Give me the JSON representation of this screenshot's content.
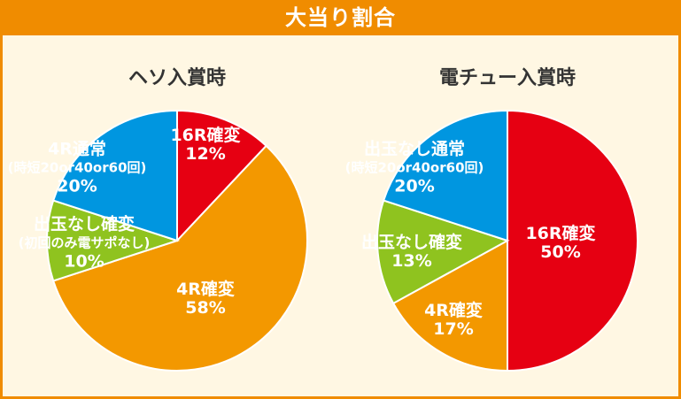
{
  "header": {
    "title": "大当り割合"
  },
  "chart_data": [
    {
      "type": "pie",
      "title": "ヘソ入賞時",
      "slices": [
        {
          "lines": [
            "16R確変"
          ],
          "percent": 12,
          "pct_label": "12%",
          "color": "#e60012"
        },
        {
          "lines": [
            "4R確変"
          ],
          "percent": 58,
          "pct_label": "58%",
          "color": "#f39800"
        },
        {
          "lines": [
            "出玉なし確変",
            "(初回のみ電サポなし)"
          ],
          "percent": 10,
          "pct_label": "10%",
          "color": "#8fc31f"
        },
        {
          "lines": [
            "4R通常",
            "(時短20or40or60回)"
          ],
          "percent": 20,
          "pct_label": "20%",
          "color": "#0096e0"
        }
      ]
    },
    {
      "type": "pie",
      "title": "電チュー入賞時",
      "slices": [
        {
          "lines": [
            "16R確変"
          ],
          "percent": 50,
          "pct_label": "50%",
          "color": "#e60012"
        },
        {
          "lines": [
            "4R確変"
          ],
          "percent": 17,
          "pct_label": "17%",
          "color": "#f39800"
        },
        {
          "lines": [
            "出玉なし確変"
          ],
          "percent": 13,
          "pct_label": "13%",
          "color": "#8fc31f"
        },
        {
          "lines": [
            "出玉なし通常",
            "(時短20or40or60回)"
          ],
          "percent": 20,
          "pct_label": "20%",
          "color": "#0096e0"
        }
      ]
    }
  ]
}
